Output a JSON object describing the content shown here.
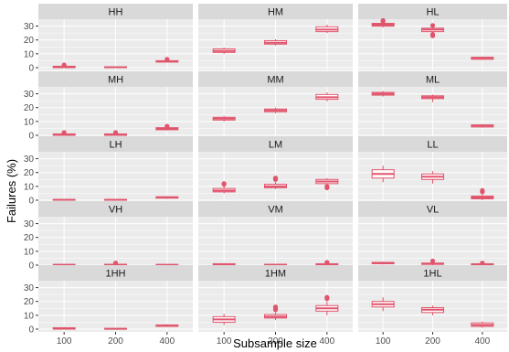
{
  "chart_data": {
    "type": "boxplot",
    "xlabel": "Subsample size",
    "ylabel": "Failures (%)",
    "categories": [
      "100",
      "200",
      "400"
    ],
    "y_ticks": [
      0,
      10,
      20,
      30
    ],
    "ylim": [
      -2,
      35
    ],
    "layout": "facet grid, 5 rows x 3 columns",
    "colors": {
      "box": "#e0546c",
      "strip_bg": "#d9d9d9",
      "panel_bg": "#ebebeb",
      "grid": "#ffffff"
    },
    "panels": [
      {
        "name": "HH",
        "boxes": [
          {
            "x": "100",
            "q1": 0,
            "median": 0.5,
            "q3": 1,
            "wmin": 0,
            "wmax": 1.5,
            "outliers": [
              2
            ]
          },
          {
            "x": "200",
            "q1": 0,
            "median": 0.3,
            "q3": 0.6,
            "wmin": 0,
            "wmax": 1,
            "outliers": []
          },
          {
            "x": "400",
            "q1": 4,
            "median": 4.5,
            "q3": 5,
            "wmin": 4,
            "wmax": 5.5,
            "outliers": [
              6
            ]
          }
        ]
      },
      {
        "name": "HM",
        "boxes": [
          {
            "x": "100",
            "q1": 11,
            "median": 12,
            "q3": 13.5,
            "wmin": 10,
            "wmax": 14.5,
            "outliers": []
          },
          {
            "x": "200",
            "q1": 17,
            "median": 18,
            "q3": 19.5,
            "wmin": 16,
            "wmax": 20.5,
            "outliers": []
          },
          {
            "x": "400",
            "q1": 26,
            "median": 27.5,
            "q3": 29.5,
            "wmin": 25,
            "wmax": 31,
            "outliers": []
          }
        ]
      },
      {
        "name": "HL",
        "boxes": [
          {
            "x": "100",
            "q1": 30,
            "median": 31,
            "q3": 32,
            "wmin": 29,
            "wmax": 33,
            "outliers": [
              33.5,
              34
            ]
          },
          {
            "x": "200",
            "q1": 26,
            "median": 27.5,
            "q3": 28.5,
            "wmin": 25,
            "wmax": 29.5,
            "outliers": [
              23,
              24,
              30.5
            ]
          },
          {
            "x": "400",
            "q1": 6,
            "median": 7,
            "q3": 7.5,
            "wmin": 5.5,
            "wmax": 8,
            "outliers": []
          }
        ]
      },
      {
        "name": "MH",
        "boxes": [
          {
            "x": "100",
            "q1": 0,
            "median": 0.5,
            "q3": 1,
            "wmin": 0,
            "wmax": 1.5,
            "outliers": [
              2
            ]
          },
          {
            "x": "200",
            "q1": 0,
            "median": 0.5,
            "q3": 1,
            "wmin": 0,
            "wmax": 1.5,
            "outliers": [
              2
            ]
          },
          {
            "x": "400",
            "q1": 4,
            "median": 4.8,
            "q3": 5.5,
            "wmin": 3.5,
            "wmax": 6,
            "outliers": [
              6.5
            ]
          }
        ]
      },
      {
        "name": "MM",
        "boxes": [
          {
            "x": "100",
            "q1": 11,
            "median": 12,
            "q3": 13,
            "wmin": 10,
            "wmax": 14,
            "outliers": []
          },
          {
            "x": "200",
            "q1": 17,
            "median": 18,
            "q3": 19,
            "wmin": 16,
            "wmax": 20,
            "outliers": []
          },
          {
            "x": "400",
            "q1": 26,
            "median": 27.5,
            "q3": 29.5,
            "wmin": 24.5,
            "wmax": 31,
            "outliers": []
          }
        ]
      },
      {
        "name": "ML",
        "boxes": [
          {
            "x": "100",
            "q1": 29,
            "median": 30,
            "q3": 31,
            "wmin": 28,
            "wmax": 32,
            "outliers": []
          },
          {
            "x": "200",
            "q1": 26.5,
            "median": 27.5,
            "q3": 28.5,
            "wmin": 24,
            "wmax": 29.5,
            "outliers": []
          },
          {
            "x": "400",
            "q1": 6,
            "median": 7,
            "q3": 7.5,
            "wmin": 5.5,
            "wmax": 8,
            "outliers": []
          }
        ]
      },
      {
        "name": "LH",
        "boxes": [
          {
            "x": "100",
            "q1": 0,
            "median": 0.3,
            "q3": 0.6,
            "wmin": 0,
            "wmax": 1,
            "outliers": []
          },
          {
            "x": "200",
            "q1": 0,
            "median": 0.3,
            "q3": 0.6,
            "wmin": 0,
            "wmax": 1,
            "outliers": []
          },
          {
            "x": "400",
            "q1": 1.5,
            "median": 2,
            "q3": 2.5,
            "wmin": 1,
            "wmax": 3,
            "outliers": []
          }
        ]
      },
      {
        "name": "LM",
        "boxes": [
          {
            "x": "100",
            "q1": 6,
            "median": 7,
            "q3": 8.5,
            "wmin": 5,
            "wmax": 10,
            "outliers": [
              11.5,
              12
            ]
          },
          {
            "x": "200",
            "q1": 9,
            "median": 10,
            "q3": 11.5,
            "wmin": 8,
            "wmax": 13,
            "outliers": [
              15,
              16
            ]
          },
          {
            "x": "400",
            "q1": 12,
            "median": 13.5,
            "q3": 15,
            "wmin": 10.5,
            "wmax": 16,
            "outliers": [
              9,
              10
            ]
          }
        ]
      },
      {
        "name": "LL",
        "boxes": [
          {
            "x": "100",
            "q1": 16,
            "median": 19,
            "q3": 22,
            "wmin": 13,
            "wmax": 25,
            "outliers": []
          },
          {
            "x": "200",
            "q1": 15,
            "median": 17,
            "q3": 19,
            "wmin": 12,
            "wmax": 21,
            "outliers": []
          },
          {
            "x": "400",
            "q1": 1,
            "median": 2,
            "q3": 3,
            "wmin": 0,
            "wmax": 4,
            "outliers": [
              6,
              7
            ]
          }
        ]
      },
      {
        "name": "VH",
        "boxes": [
          {
            "x": "100",
            "q1": 0,
            "median": 0.2,
            "q3": 0.5,
            "wmin": 0,
            "wmax": 0.8,
            "outliers": []
          },
          {
            "x": "200",
            "q1": 0,
            "median": 0.3,
            "q3": 0.6,
            "wmin": 0,
            "wmax": 1,
            "outliers": [
              1.5
            ]
          },
          {
            "x": "400",
            "q1": 0,
            "median": 0.2,
            "q3": 0.4,
            "wmin": 0,
            "wmax": 0.6,
            "outliers": []
          }
        ]
      },
      {
        "name": "VM",
        "boxes": [
          {
            "x": "100",
            "q1": 0,
            "median": 0.5,
            "q3": 1,
            "wmin": 0,
            "wmax": 1.5,
            "outliers": []
          },
          {
            "x": "200",
            "q1": 0,
            "median": 0.3,
            "q3": 0.6,
            "wmin": 0,
            "wmax": 1,
            "outliers": []
          },
          {
            "x": "400",
            "q1": 0,
            "median": 0.5,
            "q3": 1,
            "wmin": 0,
            "wmax": 1.5,
            "outliers": [
              2
            ]
          }
        ]
      },
      {
        "name": "VL",
        "boxes": [
          {
            "x": "100",
            "q1": 1,
            "median": 1.5,
            "q3": 2,
            "wmin": 0.5,
            "wmax": 2.5,
            "outliers": []
          },
          {
            "x": "200",
            "q1": 0.5,
            "median": 1,
            "q3": 1.5,
            "wmin": 0,
            "wmax": 2,
            "outliers": [
              3
            ]
          },
          {
            "x": "400",
            "q1": 0,
            "median": 0.5,
            "q3": 1,
            "wmin": 0,
            "wmax": 1.5,
            "outliers": [
              1.5
            ]
          }
        ]
      },
      {
        "name": "1HH",
        "boxes": [
          {
            "x": "100",
            "q1": 0,
            "median": 0.5,
            "q3": 1,
            "wmin": 0,
            "wmax": 1.5,
            "outliers": []
          },
          {
            "x": "200",
            "q1": 0,
            "median": 0.2,
            "q3": 0.5,
            "wmin": 0,
            "wmax": 0.8,
            "outliers": []
          },
          {
            "x": "400",
            "q1": 2,
            "median": 2.5,
            "q3": 3,
            "wmin": 1.5,
            "wmax": 3.5,
            "outliers": []
          }
        ]
      },
      {
        "name": "1HM",
        "boxes": [
          {
            "x": "100",
            "q1": 5,
            "median": 7,
            "q3": 9,
            "wmin": 3,
            "wmax": 11,
            "outliers": []
          },
          {
            "x": "200",
            "q1": 8,
            "median": 9,
            "q3": 10.5,
            "wmin": 6.5,
            "wmax": 12,
            "outliers": [
              14,
              15,
              16
            ]
          },
          {
            "x": "400",
            "q1": 13,
            "median": 15,
            "q3": 17,
            "wmin": 10,
            "wmax": 20,
            "outliers": [
              22,
              23
            ]
          }
        ]
      },
      {
        "name": "1HL",
        "boxes": [
          {
            "x": "100",
            "q1": 16,
            "median": 18,
            "q3": 20,
            "wmin": 13,
            "wmax": 23,
            "outliers": []
          },
          {
            "x": "200",
            "q1": 12,
            "median": 14,
            "q3": 15.5,
            "wmin": 10,
            "wmax": 17,
            "outliers": []
          },
          {
            "x": "400",
            "q1": 2,
            "median": 3,
            "q3": 4.5,
            "wmin": 1,
            "wmax": 5.5,
            "outliers": []
          }
        ]
      }
    ]
  }
}
